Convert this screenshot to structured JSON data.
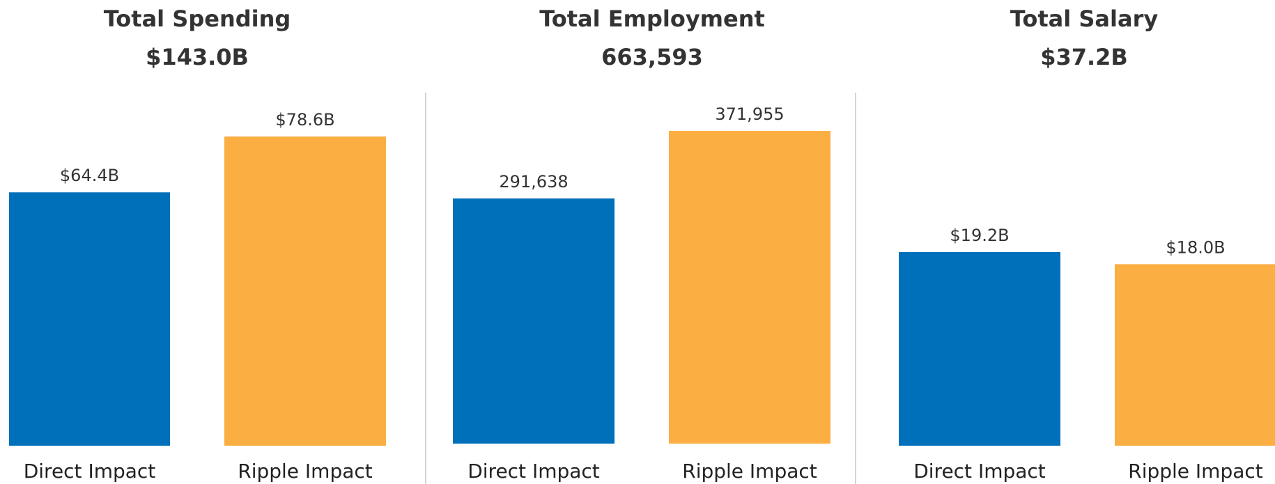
{
  "chart_data": [
    {
      "type": "bar",
      "title": "Total Spending",
      "total_label": "$143.0B",
      "categories": [
        "Direct Impact",
        "Ripple Impact"
      ],
      "values": [
        64.4,
        78.6
      ],
      "value_labels": [
        "$64.4B",
        "$78.6B"
      ],
      "unit": "$B",
      "colors": [
        "#0070bb",
        "#fbae42"
      ]
    },
    {
      "type": "bar",
      "title": "Total Employment",
      "total_label": "663,593",
      "categories": [
        "Direct Impact",
        "Ripple Impact"
      ],
      "values": [
        291638,
        371955
      ],
      "value_labels": [
        "291,638",
        "371,955"
      ],
      "colors": [
        "#0070bb",
        "#fbae42"
      ]
    },
    {
      "type": "bar",
      "title": "Total Salary",
      "total_label": "$37.2B",
      "categories": [
        "Direct Impact",
        "Ripple Impact"
      ],
      "values": [
        19.2,
        18.0
      ],
      "value_labels": [
        "$19.2B",
        "$18.0B"
      ],
      "unit": "$B",
      "colors": [
        "#0070bb",
        "#fbae42"
      ]
    }
  ]
}
